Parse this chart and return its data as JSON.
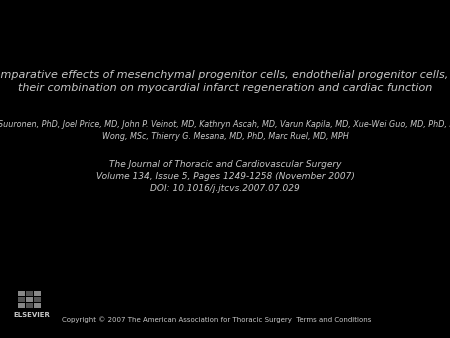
{
  "background_color": "#000000",
  "text_color": "#c8c8c8",
  "title": "Comparative effects of mesenchymal progenitor cells, endothelial progenitor cells, or\ntheir combination on myocardial infarct regeneration and cardiac function",
  "title_fontsize": 8.0,
  "title_style": "italic",
  "authors": "Erik J. Suuronen, PhD, Joel Price, MD, John P. Veinot, MD, Kathryn Ascah, MD, Varun Kapila, MD, Xue-Wei Guo, MD, PhD, Serena\nWong, MSc, Thierry G. Mesana, MD, PhD, Marc Ruel, MD, MPH",
  "authors_fontsize": 5.8,
  "authors_style": "italic",
  "journal_line1": "The Journal of Thoracic and Cardiovascular Surgery",
  "journal_line2": "Volume 134, Issue 5, Pages 1249-1258 (November 2007)",
  "journal_line3": "DOI: 10.1016/j.jtcvs.2007.07.029",
  "journal_fontsize": 6.5,
  "journal_style": "italic",
  "copyright": "Copyright © 2007 The American Association for Thoracic Surgery  Terms and Conditions",
  "copyright_fontsize": 5.0,
  "elsevier_text": "ELSEVIER",
  "elsevier_fontsize": 5.0
}
